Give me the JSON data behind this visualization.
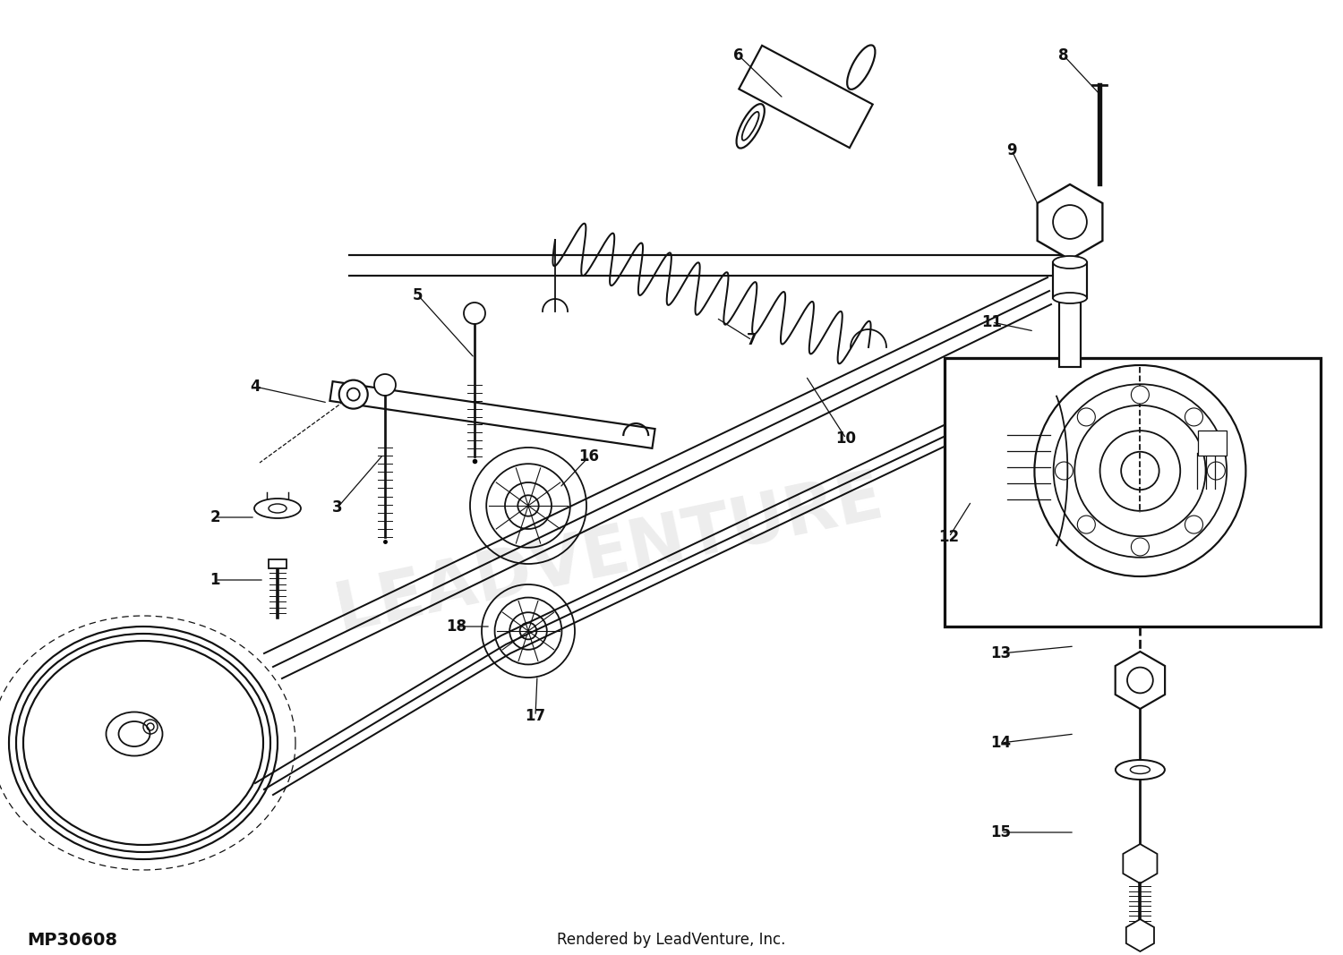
{
  "footer_left": "MP30608",
  "footer_right": "Rendered by LeadVenture, Inc.",
  "fig_width": 15.0,
  "fig_height": 10.67,
  "background_color": "#ffffff"
}
